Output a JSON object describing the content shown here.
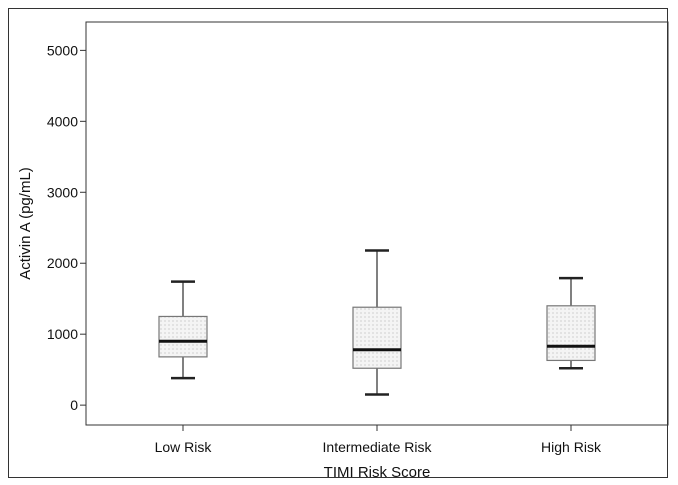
{
  "chart_data": {
    "type": "box",
    "xlabel": "TIMI Risk Score",
    "ylabel": "Activin A (pg/mL)",
    "y_ticks": [
      "0",
      "1000",
      "2000",
      "3000",
      "4000",
      "5000"
    ],
    "ylim": [
      -280,
      5400
    ],
    "categories": [
      "Low Risk",
      "Intermediate Risk",
      "High Risk"
    ],
    "boxes": [
      {
        "whisker_low": 380,
        "q1": 680,
        "median": 900,
        "q3": 1250,
        "whisker_high": 1740
      },
      {
        "whisker_low": 150,
        "q1": 520,
        "median": 780,
        "q3": 1380,
        "whisker_high": 2180
      },
      {
        "whisker_low": 520,
        "q1": 630,
        "median": 830,
        "q3": 1400,
        "whisker_high": 1790
      }
    ],
    "grid": false,
    "legend": "none",
    "colors": {
      "box_fill": "#f4f4f4",
      "box_dots": "#b5b5b5",
      "median": "#111111",
      "whisker": "#555555"
    }
  }
}
